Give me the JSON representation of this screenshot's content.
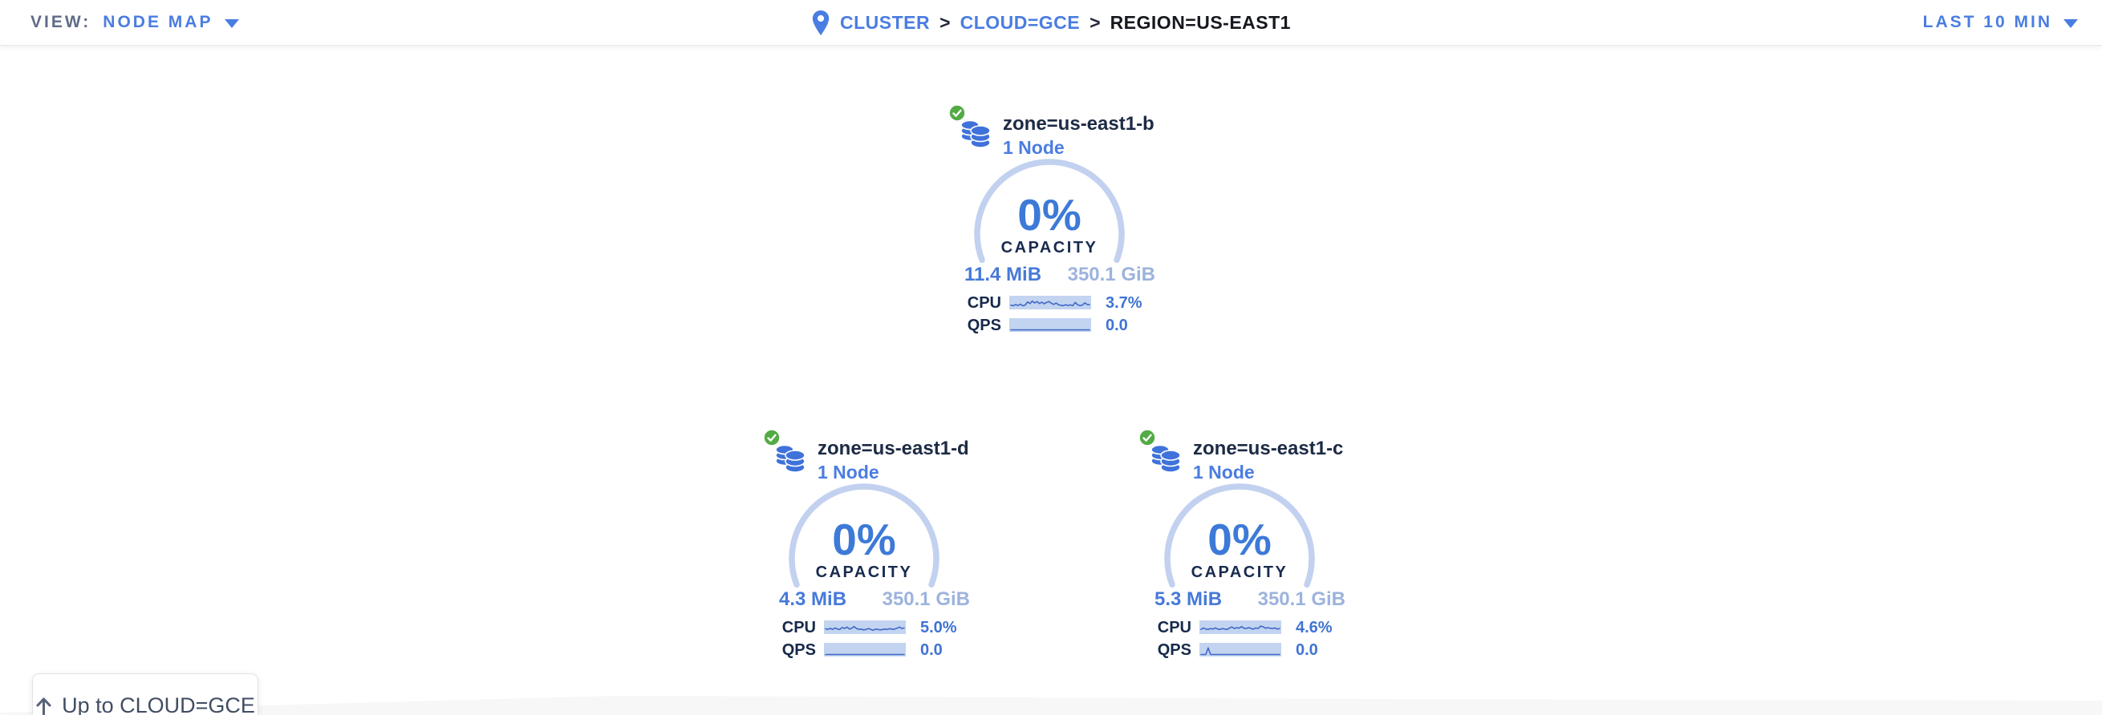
{
  "header": {
    "view_label": "VIEW:",
    "view_value": "NODE MAP",
    "time_range": "LAST 10 MIN",
    "breadcrumb": {
      "separator": ">",
      "items": [
        {
          "label": "CLUSTER"
        },
        {
          "label": "CLOUD=GCE"
        },
        {
          "label": "REGION=US-EAST1"
        }
      ]
    }
  },
  "map": {
    "up_button_label": "Up to CLOUD=GCE",
    "zones": [
      {
        "name": "zone=us-east1-b",
        "nodes": "1 Node",
        "status": "healthy",
        "capacity_percent": "0%",
        "capacity_label": "CAPACITY",
        "capacity_used": "11.4 MiB",
        "capacity_total": "350.1 GiB",
        "cpu_label": "CPU",
        "cpu_value": "3.7%",
        "qps_label": "QPS",
        "qps_value": "0.0",
        "cpu_sparkline": [
          0.25,
          0.2,
          0.32,
          0.22,
          0.36,
          0.18,
          0.26,
          0.62,
          0.44,
          0.72,
          0.5,
          0.66,
          0.44,
          0.6,
          0.4,
          0.56,
          0.66,
          0.46,
          0.34,
          0.5,
          0.3,
          0.24,
          0.2,
          0.3,
          0.22,
          0.28,
          0.2,
          0.56,
          0.3,
          0.2,
          0.26,
          0.52,
          0.34,
          0.3
        ],
        "qps_sparkline": [
          0,
          0,
          0,
          0,
          0,
          0,
          0,
          0,
          0,
          0,
          0,
          0,
          0,
          0,
          0,
          0,
          0,
          0,
          0,
          0,
          0,
          0,
          0,
          0,
          0,
          0,
          0,
          0,
          0,
          0,
          0,
          0,
          0,
          0
        ]
      },
      {
        "name": "zone=us-east1-d",
        "nodes": "1 Node",
        "status": "healthy",
        "capacity_percent": "0%",
        "capacity_label": "CAPACITY",
        "capacity_used": "4.3 MiB",
        "capacity_total": "350.1 GiB",
        "cpu_label": "CPU",
        "cpu_value": "5.0%",
        "qps_label": "QPS",
        "qps_value": "0.0",
        "cpu_sparkline": [
          0.36,
          0.3,
          0.42,
          0.3,
          0.46,
          0.34,
          0.3,
          0.52,
          0.4,
          0.56,
          0.34,
          0.44,
          0.62,
          0.4,
          0.3,
          0.34,
          0.24,
          0.3,
          0.4,
          0.3,
          0.2,
          0.34,
          0.3,
          0.24,
          0.3,
          0.34,
          0.3,
          0.4,
          0.3,
          0.34,
          0.44,
          0.56,
          0.4,
          0.46
        ],
        "qps_sparkline": [
          0,
          0,
          0,
          0,
          0,
          0,
          0,
          0,
          0,
          0,
          0,
          0,
          0,
          0,
          0,
          0,
          0,
          0,
          0,
          0,
          0,
          0,
          0,
          0,
          0,
          0,
          0,
          0,
          0,
          0,
          0,
          0,
          0,
          0
        ]
      },
      {
        "name": "zone=us-east1-c",
        "nodes": "1 Node",
        "status": "healthy",
        "capacity_percent": "0%",
        "capacity_label": "CAPACITY",
        "capacity_used": "5.3 MiB",
        "capacity_total": "350.1 GiB",
        "cpu_label": "CPU",
        "cpu_value": "4.6%",
        "qps_label": "QPS",
        "qps_value": "0.0",
        "cpu_sparkline": [
          0.3,
          0.46,
          0.34,
          0.3,
          0.4,
          0.34,
          0.46,
          0.34,
          0.3,
          0.4,
          0.34,
          0.3,
          0.46,
          0.56,
          0.4,
          0.5,
          0.44,
          0.62,
          0.44,
          0.4,
          0.5,
          0.4,
          0.34,
          0.46,
          0.4,
          0.66,
          0.6,
          0.44,
          0.5,
          0.44,
          0.4,
          0.46,
          0.34,
          0.4
        ],
        "qps_sparkline": [
          0,
          0,
          0,
          0.75,
          0,
          0,
          0,
          0,
          0,
          0,
          0,
          0,
          0,
          0,
          0,
          0,
          0,
          0,
          0,
          0,
          0,
          0,
          0,
          0,
          0,
          0,
          0,
          0,
          0,
          0,
          0,
          0,
          0,
          0
        ]
      }
    ]
  },
  "colors": {
    "accent_blue": "#4a7de1",
    "gauge_arc": "#c2d1ef",
    "spark_bg": "#c2d4f0",
    "spark_line": "#4068c8",
    "healthy_green": "#52ab44",
    "dark_navy": "#1c2a44",
    "capacity_total_muted": "#9db3dd",
    "label_gray": "#5f6c87"
  }
}
